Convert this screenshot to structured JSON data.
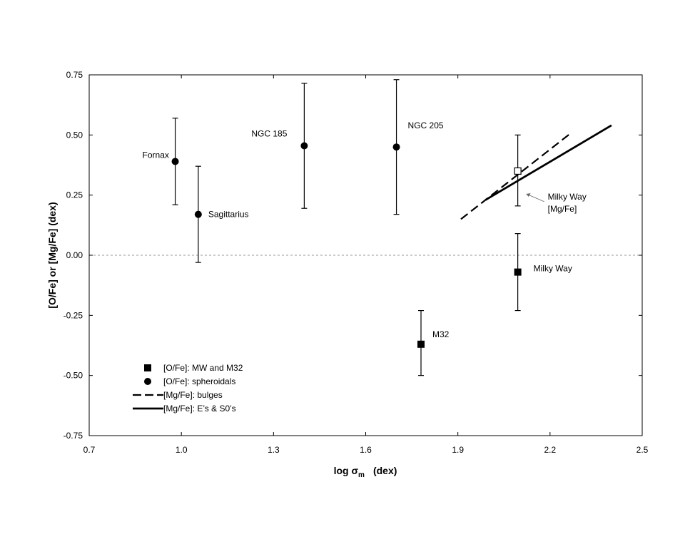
{
  "chart_data": {
    "type": "scatter",
    "xlabel": "log σm (dex)",
    "xlabel_main": "log σ",
    "xlabel_sub": "m",
    "xlabel_unit": "(dex)",
    "ylabel": "[O/Fe] or [Mg/Fe] (dex)",
    "xlim": [
      0.7,
      2.5
    ],
    "ylim": [
      -0.75,
      0.75
    ],
    "xticks": [
      "0.7",
      "1.0",
      "1.3",
      "1.6",
      "1.9",
      "2.2",
      "2.5"
    ],
    "yticks": [
      "0.75",
      "0.50",
      "0.25",
      "0.00",
      "-0.25",
      "-0.50",
      "-0.75"
    ],
    "grid": false,
    "reference_line_y": 0.0,
    "legend_position": "bottom-left",
    "series": [
      {
        "name": "[O/Fe]: MW and M32",
        "marker": "filled-square",
        "points": [
          {
            "label": "M32",
            "x": 1.78,
            "y": -0.37,
            "err_low": -0.5,
            "err_high": -0.23
          },
          {
            "label": "Milky Way",
            "x": 2.095,
            "y": -0.07,
            "err_low": -0.23,
            "err_high": 0.09
          }
        ]
      },
      {
        "name": "[O/Fe]: spheroidals",
        "marker": "filled-circle",
        "points": [
          {
            "label": "Fornax",
            "x": 0.98,
            "y": 0.39,
            "err_low": 0.21,
            "err_high": 0.57
          },
          {
            "label": "Sagittarius",
            "x": 1.055,
            "y": 0.17,
            "err_low": -0.03,
            "err_high": 0.37
          },
          {
            "label": "NGC 185",
            "x": 1.4,
            "y": 0.455,
            "err_low": 0.195,
            "err_high": 0.715
          },
          {
            "label": "NGC 205",
            "x": 1.7,
            "y": 0.45,
            "err_low": 0.17,
            "err_high": 0.73
          }
        ]
      },
      {
        "name": "[Mg/Fe]: bulges",
        "style": "dashed-line",
        "x": [
          1.91,
          2.27
        ],
        "y": [
          0.15,
          0.51
        ]
      },
      {
        "name": "[Mg/Fe]: E’s & S0’s",
        "style": "solid-line",
        "x": [
          1.99,
          2.4
        ],
        "y": [
          0.23,
          0.54
        ]
      }
    ],
    "annotations": [
      {
        "text_lines": [
          "Milky Way",
          "[Mg/Fe]"
        ],
        "marker": "open-square",
        "x": 2.095,
        "y": 0.35,
        "err_low": 0.205,
        "err_high": 0.5
      }
    ]
  }
}
